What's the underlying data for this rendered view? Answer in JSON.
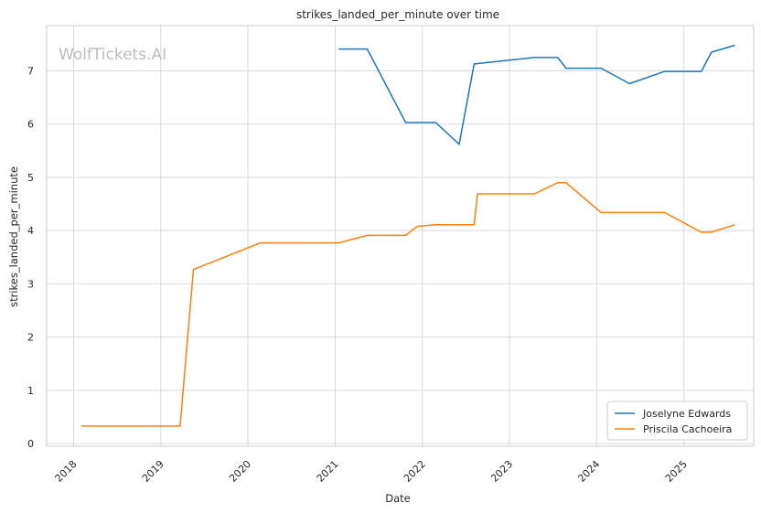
{
  "chart_data": {
    "type": "line",
    "title": "strikes_landed_per_minute over time",
    "xlabel": "Date",
    "ylabel": "strikes_landed_per_minute",
    "watermark": "WolfTickets.AI",
    "x_ticks": [
      "2018",
      "2019",
      "2020",
      "2021",
      "2022",
      "2023",
      "2024",
      "2025"
    ],
    "y_ticks": [
      0,
      1,
      2,
      3,
      4,
      5,
      6,
      7
    ],
    "xlim": [
      "2017-09-10",
      "2025-10-20"
    ],
    "ylim": [
      -0.05,
      7.85
    ],
    "grid": true,
    "legend_position": "lower-right",
    "colors": {
      "Joselyne Edwards": "#1f77b4",
      "Priscila Cachoeira": "#ff7f0e"
    },
    "series": [
      {
        "name": "Joselyne Edwards",
        "color": "#1f77b4",
        "points": [
          [
            "2021-01-16",
            7.41
          ],
          [
            "2021-05-15",
            7.41
          ],
          [
            "2021-10-23",
            6.03
          ],
          [
            "2022-02-26",
            6.03
          ],
          [
            "2022-06-04",
            5.62
          ],
          [
            "2022-08-06",
            7.13
          ],
          [
            "2023-04-15",
            7.25
          ],
          [
            "2023-07-22",
            7.25
          ],
          [
            "2023-08-26",
            7.05
          ],
          [
            "2024-01-20",
            7.05
          ],
          [
            "2024-05-18",
            6.76
          ],
          [
            "2024-10-12",
            6.99
          ],
          [
            "2025-03-15",
            6.99
          ],
          [
            "2025-04-26",
            7.35
          ],
          [
            "2025-08-02",
            7.48
          ]
        ]
      },
      {
        "name": "Priscila Cachoeira",
        "color": "#ff7f0e",
        "points": [
          [
            "2018-02-03",
            0.33
          ],
          [
            "2019-03-23",
            0.33
          ],
          [
            "2019-05-18",
            3.27
          ],
          [
            "2020-02-22",
            3.77
          ],
          [
            "2021-01-16",
            3.77
          ],
          [
            "2021-05-15",
            3.91
          ],
          [
            "2021-10-23",
            3.91
          ],
          [
            "2021-12-11",
            4.08
          ],
          [
            "2022-02-26",
            4.11
          ],
          [
            "2022-08-06",
            4.11
          ],
          [
            "2022-08-20",
            4.69
          ],
          [
            "2023-04-15",
            4.69
          ],
          [
            "2023-07-22",
            4.9
          ],
          [
            "2023-08-26",
            4.9
          ],
          [
            "2024-01-20",
            4.34
          ],
          [
            "2024-10-12",
            4.34
          ],
          [
            "2025-03-15",
            3.97
          ],
          [
            "2025-04-26",
            3.97
          ],
          [
            "2025-08-02",
            4.11
          ]
        ]
      }
    ]
  }
}
